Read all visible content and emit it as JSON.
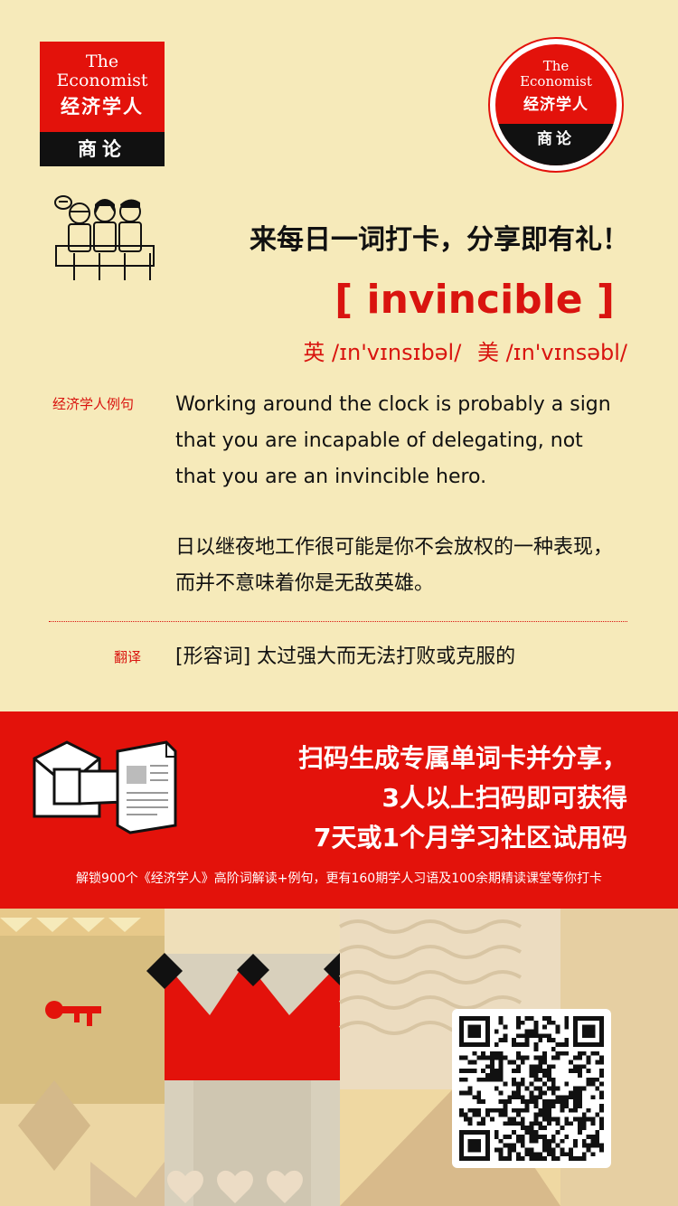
{
  "logos": {
    "rect": {
      "english": [
        "The",
        "Economist"
      ],
      "chinese": "经济学人",
      "sub": "商论"
    },
    "circle": {
      "english": [
        "The",
        "Economist"
      ],
      "chinese": "经济学人",
      "sub": "商论"
    }
  },
  "headline": "来每日一词打卡，分享即有礼！",
  "word": "[ invincible ]",
  "phonetics": {
    "uk_label": "英",
    "uk_ipa": "/ɪn'vɪnsɪbəl/",
    "us_label": "美",
    "us_ipa": "/ɪn'vɪnsəbl/"
  },
  "example": {
    "label": "经济学人例句",
    "en": "Working around the clock is probably a sign that you are incapable of delegating, not that you are an invincible hero.",
    "cn": "日以继夜地工作很可能是你不会放权的一种表现，而并不意味着你是无敌英雄。"
  },
  "translation": {
    "label": "翻译",
    "text": "[形容词] 太过强大而无法打败或克服的"
  },
  "banner": {
    "lines": [
      "扫码生成专属单词卡并分享，",
      "3人以上扫码即可获得",
      "7天或1个月学习社区试用码"
    ],
    "sub": "解锁900个《经济学人》高阶词解读+例句，更有160期学人习语及100余期精读课堂等你打卡"
  },
  "colors": {
    "background": "#f6eaba",
    "accent_red": "#e3120b",
    "text_dark": "#111111"
  },
  "icons": [
    "people-illustration",
    "newspaper-hand-illustration",
    "key-icon",
    "crown-graphic",
    "qr-code"
  ]
}
